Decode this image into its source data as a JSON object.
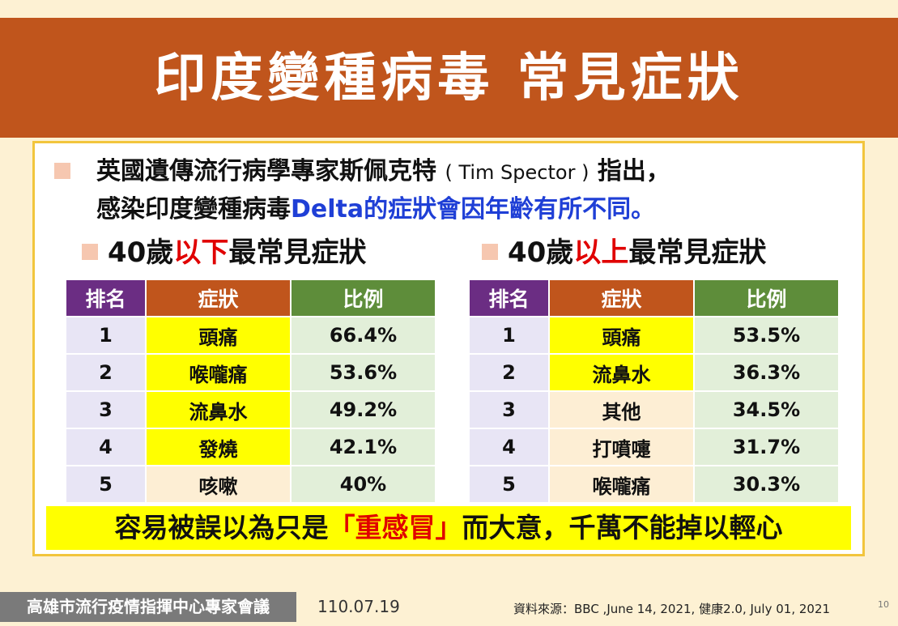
{
  "title": "印度變種病毒 常見症狀",
  "intro": {
    "line1_part1": "英國遺傳流行病學專家斯佩克特",
    "line1_en": "( Tim Spector )",
    "line1_part2": "指出，",
    "line2_part1": "感染印度變種病毒",
    "line2_highlight": "Delta的症狀會因年齡有所不同。"
  },
  "under40": {
    "prefix": "40歲",
    "highlight": "以下",
    "suffix": "最常見症狀",
    "headers": [
      "排名",
      "症狀",
      "比例"
    ],
    "rows": [
      {
        "rank": "1",
        "symptom": "頭痛",
        "ratio": "66.4%"
      },
      {
        "rank": "2",
        "symptom": "喉嚨痛",
        "ratio": "53.6%"
      },
      {
        "rank": "3",
        "symptom": "流鼻水",
        "ratio": "49.2%"
      },
      {
        "rank": "4",
        "symptom": "發燒",
        "ratio": "42.1%"
      },
      {
        "rank": "5",
        "symptom": "咳嗽",
        "ratio": "40%"
      }
    ]
  },
  "over40": {
    "prefix": "40歲",
    "highlight": "以上",
    "suffix": "最常見症狀",
    "headers": [
      "排名",
      "症狀",
      "比例"
    ],
    "rows": [
      {
        "rank": "1",
        "symptom": "頭痛",
        "ratio": "53.5%"
      },
      {
        "rank": "2",
        "symptom": "流鼻水",
        "ratio": "36.3%"
      },
      {
        "rank": "3",
        "symptom": "其他",
        "ratio": "34.5%"
      },
      {
        "rank": "4",
        "symptom": "打噴嚏",
        "ratio": "31.7%"
      },
      {
        "rank": "5",
        "symptom": "喉嚨痛",
        "ratio": "30.3%"
      }
    ]
  },
  "warning": {
    "part1": "容易被誤以為只是",
    "highlight": "「重感冒」",
    "part2": "而大意，千萬不能掉以輕心"
  },
  "footer": {
    "org": "高雄市流行疫情指揮中心專家會議",
    "date": "110.07.19",
    "source": "資料來源：BBC ,June 14, 2021, 健康2.0, July 01, 2021",
    "page": "10"
  },
  "colors": {
    "banner": "#c0551c",
    "header_rank": "#6b2d83",
    "header_symptom": "#c0551c",
    "header_ratio": "#5e8d3a",
    "highlight_yellow": "#ffff00",
    "accent_red": "#e00000",
    "accent_blue": "#1f3fd6"
  }
}
